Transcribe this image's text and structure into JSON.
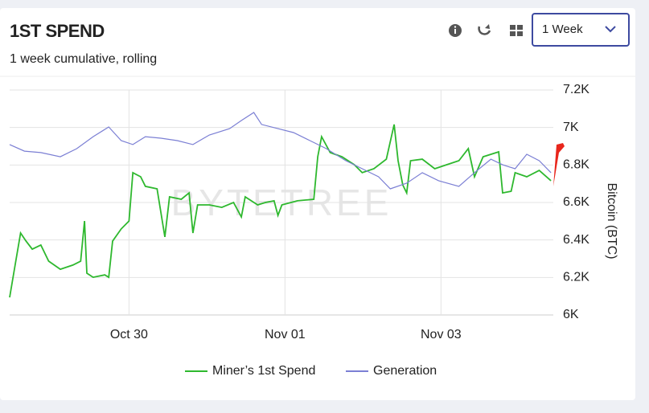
{
  "header": {
    "title": "1ST SPEND",
    "subtitle": "1 week cumulative, rolling",
    "period": "1 Week"
  },
  "chart_data": {
    "type": "line",
    "watermark": "BYTETREE",
    "y_label": "Bitcoin (BTC)",
    "grid": true,
    "legend": "bottom",
    "xlim": [
      28.47,
      35.44
    ],
    "xticks": [
      {
        "value": 30,
        "label": "Oct 30"
      },
      {
        "value": 32,
        "label": "Nov 01"
      },
      {
        "value": 34,
        "label": "Nov 03"
      }
    ],
    "ylim": [
      6000,
      7200
    ],
    "yticks": [
      {
        "value": 6000,
        "label": "6K"
      },
      {
        "value": 6200,
        "label": "6.2K"
      },
      {
        "value": 6400,
        "label": "6.4K"
      },
      {
        "value": 6600,
        "label": "6.6K"
      },
      {
        "value": 6800,
        "label": "6.8K"
      },
      {
        "value": 7000,
        "label": "7K"
      },
      {
        "value": 7200,
        "label": "7.2K"
      }
    ],
    "series": [
      {
        "name": "Miner’s 1st Spend",
        "color": "#2eb82e",
        "x": [
          28.47,
          28.54,
          28.61,
          28.68,
          28.76,
          28.87,
          28.97,
          29.12,
          29.28,
          29.38,
          29.43,
          29.46,
          29.54,
          29.69,
          29.74,
          29.79,
          29.9,
          30.0,
          30.05,
          30.15,
          30.21,
          30.36,
          30.46,
          30.52,
          30.67,
          30.77,
          30.82,
          30.88,
          31.03,
          31.19,
          31.34,
          31.44,
          31.49,
          31.65,
          31.75,
          31.86,
          31.91,
          31.96,
          32.16,
          32.37,
          32.42,
          32.47,
          32.58,
          32.73,
          32.89,
          32.99,
          33.14,
          33.3,
          33.4,
          33.45,
          33.51,
          33.56,
          33.61,
          33.76,
          33.92,
          34.07,
          34.23,
          34.35,
          34.43,
          34.54,
          34.74,
          34.79,
          34.9,
          34.95,
          35.1,
          35.26,
          35.41
        ],
        "values": [
          6094,
          6266,
          6437,
          6394,
          6351,
          6373,
          6287,
          6244,
          6266,
          6287,
          6501,
          6223,
          6201,
          6214,
          6201,
          6394,
          6459,
          6501,
          6759,
          6737,
          6686,
          6673,
          6416,
          6630,
          6617,
          6651,
          6437,
          6587,
          6587,
          6574,
          6600,
          6523,
          6630,
          6587,
          6600,
          6609,
          6531,
          6587,
          6609,
          6617,
          6844,
          6951,
          6866,
          6844,
          6801,
          6759,
          6780,
          6831,
          7016,
          6823,
          6694,
          6651,
          6823,
          6831,
          6780,
          6801,
          6823,
          6887,
          6737,
          6844,
          6870,
          6651,
          6660,
          6759,
          6737,
          6771,
          6716
        ]
      },
      {
        "name": "Generation",
        "color": "#7b7fd4",
        "x": [
          28.47,
          28.66,
          28.87,
          29.12,
          29.33,
          29.54,
          29.74,
          29.9,
          30.05,
          30.21,
          30.41,
          30.62,
          30.82,
          31.03,
          31.29,
          31.44,
          31.6,
          31.7,
          31.91,
          32.11,
          32.32,
          32.53,
          32.78,
          32.99,
          33.2,
          33.35,
          33.56,
          33.76,
          33.97,
          34.23,
          34.43,
          34.64,
          34.79,
          34.95,
          35.1,
          35.26,
          35.41
        ],
        "values": [
          6909,
          6874,
          6866,
          6844,
          6887,
          6951,
          7003,
          6930,
          6909,
          6951,
          6943,
          6930,
          6909,
          6960,
          6994,
          7037,
          7080,
          7016,
          6994,
          6973,
          6930,
          6887,
          6823,
          6780,
          6737,
          6673,
          6703,
          6759,
          6716,
          6686,
          6759,
          6831,
          6801,
          6780,
          6857,
          6823,
          6759
        ]
      }
    ]
  }
}
